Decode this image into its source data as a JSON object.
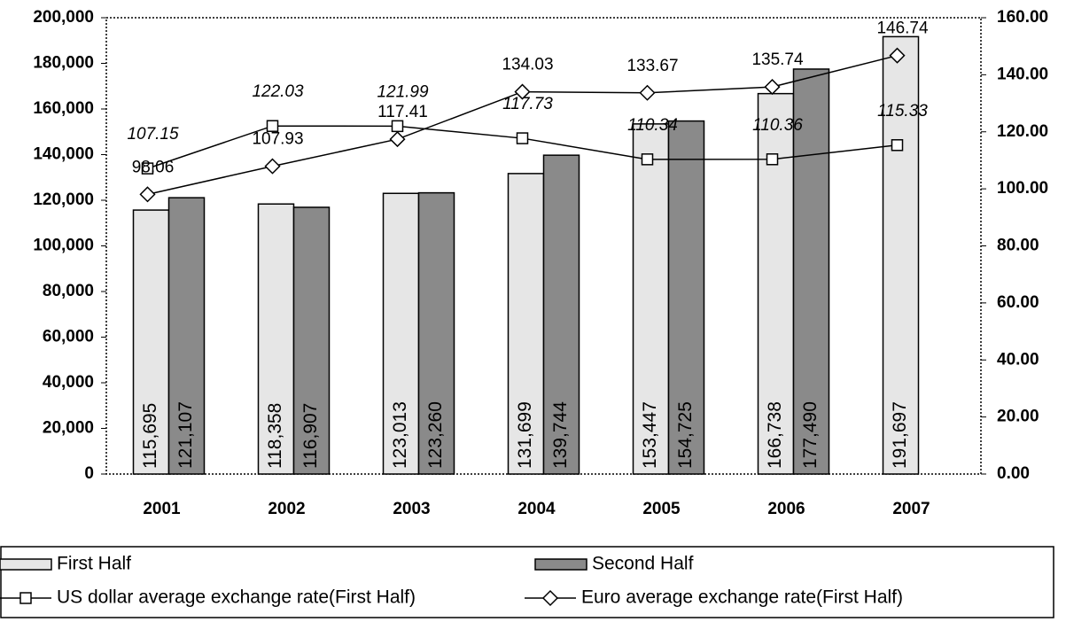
{
  "chart_data": {
    "type": "bar",
    "categories": [
      "2001",
      "2002",
      "2003",
      "2004",
      "2005",
      "2006",
      "2007"
    ],
    "series": [
      {
        "name": "First Half",
        "color": "#e6e6e6",
        "values": [
          115695,
          118358,
          123013,
          131699,
          153447,
          166738,
          191697
        ],
        "value_labels": [
          "115,695",
          "118,358",
          "123,013",
          "131,699",
          "153,447",
          "166,738",
          "191,697"
        ]
      },
      {
        "name": "Second Half",
        "color": "#8a8a8a",
        "values": [
          121107,
          116907,
          123260,
          139744,
          154725,
          177490,
          null
        ],
        "value_labels": [
          "121,107",
          "116,907",
          "123,260",
          "139,744",
          "154,725",
          "177,490",
          null
        ]
      },
      {
        "name": "US dollar average exchange rate(First Half)",
        "type": "line",
        "marker": "square",
        "axis": "y2",
        "color": "#000000",
        "values": [
          107.15,
          122.03,
          121.99,
          117.73,
          110.34,
          110.36,
          115.33
        ]
      },
      {
        "name": "Euro average exchange rate(First Half)",
        "type": "line",
        "marker": "diamond",
        "axis": "y2",
        "color": "#000000",
        "values": [
          98.06,
          107.93,
          117.41,
          134.03,
          133.67,
          135.74,
          146.74
        ]
      }
    ],
    "ylim": [
      0,
      200000
    ],
    "yticks": [
      0,
      {
        "value": 20000,
        "label": "20,000"
      },
      {
        "value": 40000,
        "label": "40,000"
      },
      {
        "value": 60000,
        "label": "60,000"
      },
      {
        "value": 80000,
        "label": "80,000"
      },
      {
        "value": 100000,
        "label": "100,000"
      },
      {
        "value": 120000,
        "label": "120,000"
      },
      {
        "value": 140000,
        "label": "140,000"
      },
      {
        "value": 160000,
        "label": "160,000"
      },
      {
        "value": 180000,
        "label": "180,000"
      },
      {
        "value": 200000,
        "label": "200,000"
      }
    ],
    "y2lim": [
      0,
      160
    ],
    "y2ticks": [
      {
        "value": 0,
        "label": "0.00"
      },
      {
        "value": 20,
        "label": "20.00"
      },
      {
        "value": 40,
        "label": "40.00"
      },
      {
        "value": 60,
        "label": "60.00"
      },
      {
        "value": 80,
        "label": "80.00"
      },
      {
        "value": 100,
        "label": "100.00"
      },
      {
        "value": 120,
        "label": "120.00"
      },
      {
        "value": 140,
        "label": "140.00"
      },
      {
        "value": 160,
        "label": "160.00"
      }
    ],
    "legend": "bottom"
  }
}
